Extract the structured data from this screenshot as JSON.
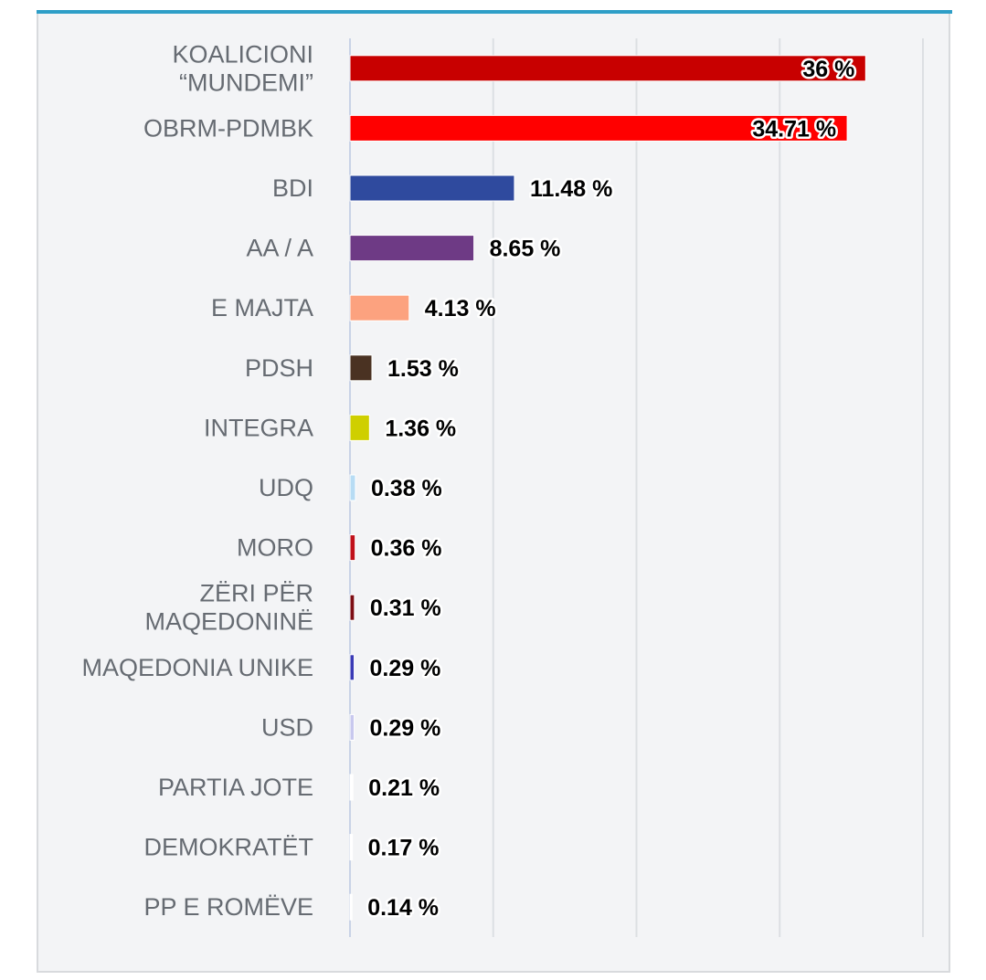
{
  "chart_data": {
    "type": "bar",
    "orientation": "horizontal",
    "categories": [
      [
        "KOALICIONI",
        "“MUNDEMI”"
      ],
      [
        "OBRM-PDMBK"
      ],
      [
        "BDI"
      ],
      [
        "AA / A"
      ],
      [
        "E MAJTA"
      ],
      [
        "PDSH"
      ],
      [
        "INTEGRA"
      ],
      [
        "UDQ"
      ],
      [
        "MORO"
      ],
      [
        "ZËRI PËR",
        "MAQEDONINË"
      ],
      [
        "MAQEDONIA UNIKE"
      ],
      [
        "USD"
      ],
      [
        "PARTIA JOTE"
      ],
      [
        "DEMOKRATËT"
      ],
      [
        "PP E ROMËVE"
      ]
    ],
    "values": [
      36,
      34.71,
      11.48,
      8.65,
      4.13,
      1.53,
      1.36,
      0.38,
      0.36,
      0.31,
      0.29,
      0.29,
      0.21,
      0.17,
      0.14
    ],
    "value_labels": [
      "36 %",
      "34.71 %",
      "11.48 %",
      "8.65 %",
      "4.13 %",
      "1.53 %",
      "1.36 %",
      "0.38 %",
      "0.36 %",
      "0.31 %",
      "0.29 %",
      "0.29 %",
      "0.21 %",
      "0.17 %",
      "0.14 %"
    ],
    "colors": [
      "#c80000",
      "#ff0000",
      "#2f4a9e",
      "#6e3a85",
      "#fca27f",
      "#4a3222",
      "#cfcf00",
      "#b7dcf4",
      "#c0101a",
      "#7d0d14",
      "#3a3ab5",
      "#c8c8ee",
      "#ffffff",
      "#ffffff",
      "#ffffff"
    ],
    "xlim": [
      0,
      40
    ],
    "grid": true,
    "title": "",
    "xlabel": "",
    "ylabel": ""
  }
}
